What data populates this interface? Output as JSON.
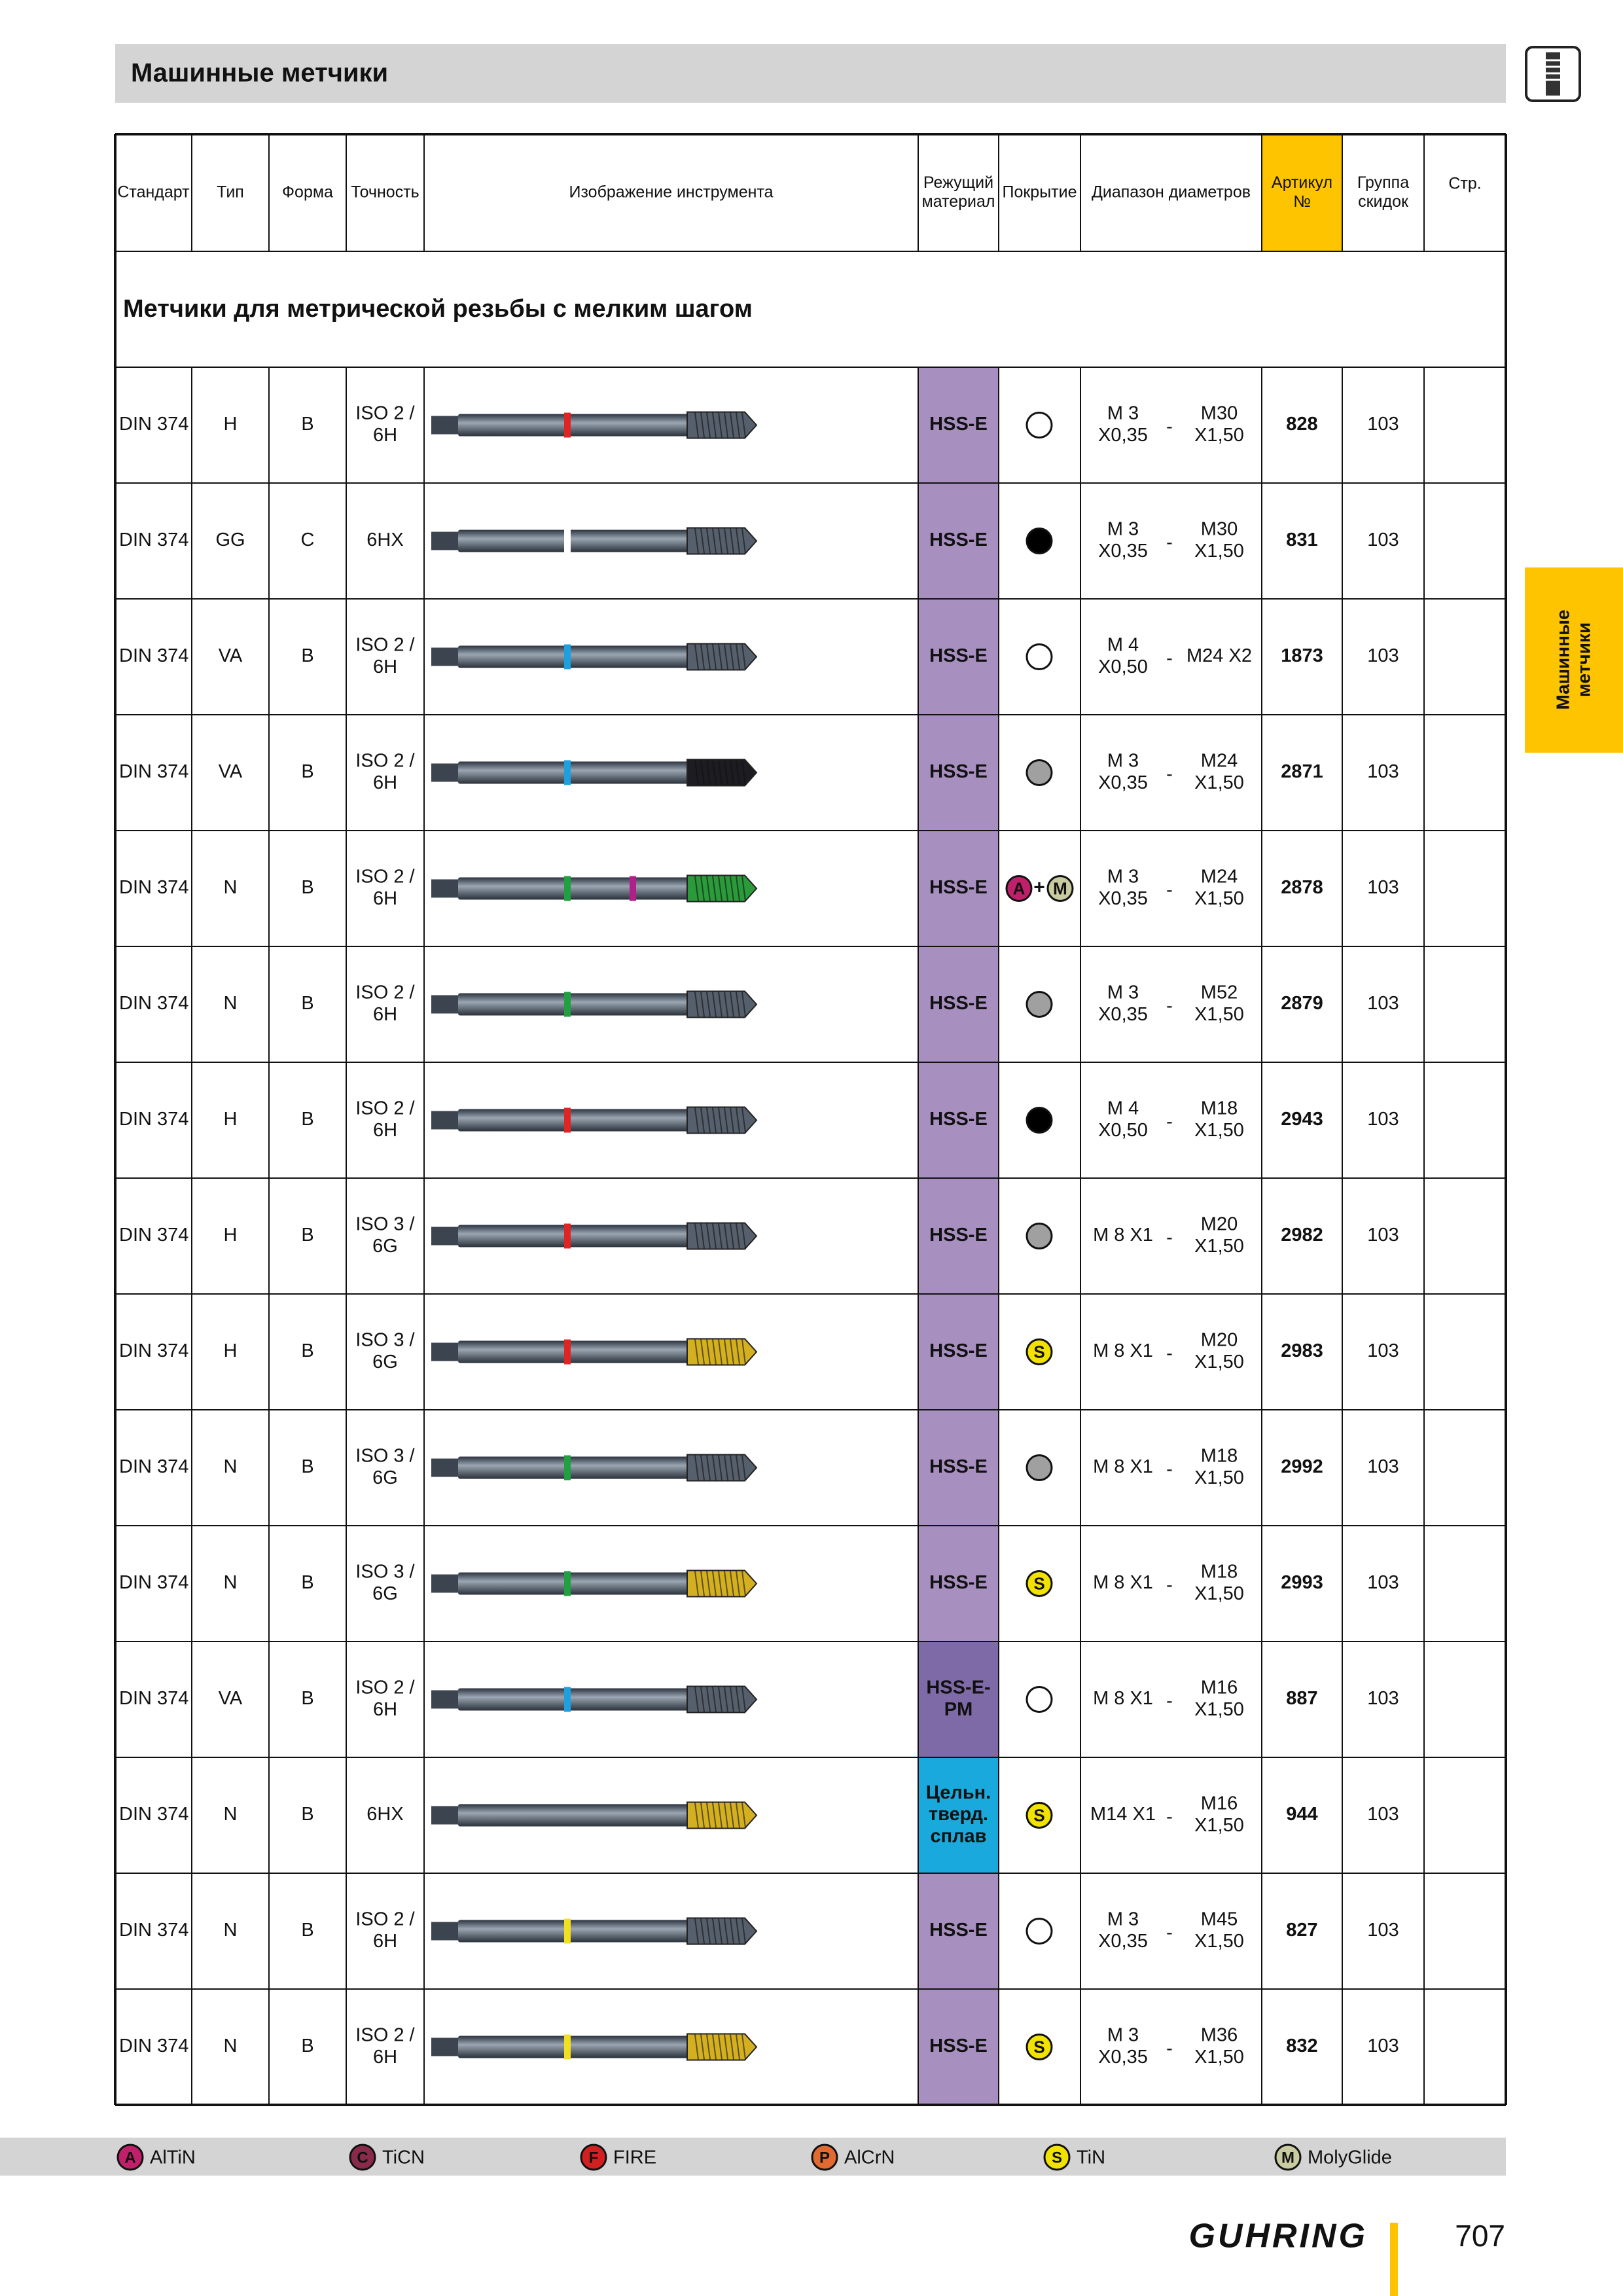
{
  "header": {
    "title": "Машинные метчики"
  },
  "table": {
    "columns": [
      [
        "Стандарт"
      ],
      [
        "Тип"
      ],
      [
        "Форма"
      ],
      [
        "Точность"
      ],
      [
        "Изображение инструмента"
      ],
      [
        "Режущий",
        "материал"
      ],
      [
        "Покрытие"
      ],
      [
        "Диапазон диаметров"
      ],
      [
        "Артикул",
        "№"
      ],
      [
        "Группа",
        "скидок"
      ],
      [
        "Стр."
      ]
    ],
    "section_title": "Метчики для метрической резьбы с мелким шагом",
    "range_sep": "-",
    "rows": [
      {
        "standard": "DIN 374",
        "type": "H",
        "form": "B",
        "accuracy": [
          "ISO 2 /",
          "6H"
        ],
        "tool": {
          "band": "#e02424",
          "tip": "#56606c"
        },
        "material": [
          "HSS-E"
        ],
        "material_color": "#a78fc0",
        "coating": [
          {
            "color": "#ffffff"
          }
        ],
        "range_from": [
          "M 3",
          "X0,35"
        ],
        "range_to": [
          "M30",
          "X1,50"
        ],
        "article": "828",
        "group": "103"
      },
      {
        "standard": "DIN 374",
        "type": "GG",
        "form": "C",
        "accuracy": [
          "6HX"
        ],
        "tool": {
          "band": "#ffffff",
          "tip": "#56606c"
        },
        "material": [
          "HSS-E"
        ],
        "material_color": "#a78fc0",
        "coating": [
          {
            "color": "#000000"
          }
        ],
        "range_from": [
          "M 3",
          "X0,35"
        ],
        "range_to": [
          "M30",
          "X1,50"
        ],
        "article": "831",
        "group": "103"
      },
      {
        "standard": "DIN 374",
        "type": "VA",
        "form": "B",
        "accuracy": [
          "ISO 2 /",
          "6H"
        ],
        "tool": {
          "band": "#1ea0e0",
          "tip": "#56606c"
        },
        "material": [
          "HSS-E"
        ],
        "material_color": "#a78fc0",
        "coating": [
          {
            "color": "#ffffff"
          }
        ],
        "range_from": [
          "M 4",
          "X0,50"
        ],
        "range_to": [
          "M24 X2"
        ],
        "article": "1873",
        "group": "103"
      },
      {
        "standard": "DIN 374",
        "type": "VA",
        "form": "B",
        "accuracy": [
          "ISO 2 /",
          "6H"
        ],
        "tool": {
          "band": "#1ea0e0",
          "tip": "#1c1c22"
        },
        "material": [
          "HSS-E"
        ],
        "material_color": "#a78fc0",
        "coating": [
          {
            "color": "#a0a0a0"
          }
        ],
        "range_from": [
          "M 3",
          "X0,35"
        ],
        "range_to": [
          "M24",
          "X1,50"
        ],
        "article": "2871",
        "group": "103"
      },
      {
        "standard": "DIN 374",
        "type": "N",
        "form": "B",
        "accuracy": [
          "ISO 2 /",
          "6H"
        ],
        "tool": {
          "band": "#20a040",
          "band2": "#b0208a",
          "tip": "#2a9a3a"
        },
        "material": [
          "HSS-E"
        ],
        "material_color": "#a78fc0",
        "coating": [
          {
            "label": "A",
            "color": "#c0206a"
          },
          {
            "label": "M",
            "color": "#c8cca0"
          }
        ],
        "coating_join": "+",
        "range_from": [
          "M 3",
          "X0,35"
        ],
        "range_to": [
          "M24",
          "X1,50"
        ],
        "article": "2878",
        "group": "103"
      },
      {
        "standard": "DIN 374",
        "type": "N",
        "form": "B",
        "accuracy": [
          "ISO 2 /",
          "6H"
        ],
        "tool": {
          "band": "#20a040",
          "tip": "#56606c"
        },
        "material": [
          "HSS-E"
        ],
        "material_color": "#a78fc0",
        "coating": [
          {
            "color": "#a0a0a0"
          }
        ],
        "range_from": [
          "M 3",
          "X0,35"
        ],
        "range_to": [
          "M52",
          "X1,50"
        ],
        "article": "2879",
        "group": "103"
      },
      {
        "standard": "DIN 374",
        "type": "H",
        "form": "B",
        "accuracy": [
          "ISO 2 /",
          "6H"
        ],
        "tool": {
          "band": "#e02424",
          "tip": "#56606c"
        },
        "material": [
          "HSS-E"
        ],
        "material_color": "#a78fc0",
        "coating": [
          {
            "color": "#000000"
          }
        ],
        "range_from": [
          "M 4",
          "X0,50"
        ],
        "range_to": [
          "M18",
          "X1,50"
        ],
        "article": "2943",
        "group": "103"
      },
      {
        "standard": "DIN 374",
        "type": "H",
        "form": "B",
        "accuracy": [
          "ISO 3 /",
          "6G"
        ],
        "tool": {
          "band": "#e02424",
          "tip": "#56606c"
        },
        "material": [
          "HSS-E"
        ],
        "material_color": "#a78fc0",
        "coating": [
          {
            "color": "#a0a0a0"
          }
        ],
        "range_from": [
          "M 8 X1"
        ],
        "range_to": [
          "M20",
          "X1,50"
        ],
        "article": "2982",
        "group": "103"
      },
      {
        "standard": "DIN 374",
        "type": "H",
        "form": "B",
        "accuracy": [
          "ISO 3 /",
          "6G"
        ],
        "tool": {
          "band": "#e02424",
          "tip": "#d4b020"
        },
        "material": [
          "HSS-E"
        ],
        "material_color": "#a78fc0",
        "coating": [
          {
            "label": "S",
            "color": "#f2e200"
          }
        ],
        "range_from": [
          "M 8 X1"
        ],
        "range_to": [
          "M20",
          "X1,50"
        ],
        "article": "2983",
        "group": "103"
      },
      {
        "standard": "DIN 374",
        "type": "N",
        "form": "B",
        "accuracy": [
          "ISO 3 /",
          "6G"
        ],
        "tool": {
          "band": "#20a040",
          "tip": "#56606c"
        },
        "material": [
          "HSS-E"
        ],
        "material_color": "#a78fc0",
        "coating": [
          {
            "color": "#a0a0a0"
          }
        ],
        "range_from": [
          "M 8 X1"
        ],
        "range_to": [
          "M18",
          "X1,50"
        ],
        "article": "2992",
        "group": "103"
      },
      {
        "standard": "DIN 374",
        "type": "N",
        "form": "B",
        "accuracy": [
          "ISO 3 /",
          "6G"
        ],
        "tool": {
          "band": "#20a040",
          "tip": "#d4b020"
        },
        "material": [
          "HSS-E"
        ],
        "material_color": "#a78fc0",
        "coating": [
          {
            "label": "S",
            "color": "#f2e200"
          }
        ],
        "range_from": [
          "M 8 X1"
        ],
        "range_to": [
          "M18",
          "X1,50"
        ],
        "article": "2993",
        "group": "103"
      },
      {
        "standard": "DIN 374",
        "type": "VA",
        "form": "B",
        "accuracy": [
          "ISO 2 /",
          "6H"
        ],
        "tool": {
          "band": "#1ea0e0",
          "tip": "#56606c"
        },
        "material": [
          "HSS-E-",
          "PM"
        ],
        "material_color": "#7f6aa8",
        "coating": [
          {
            "color": "#ffffff"
          }
        ],
        "range_from": [
          "M 8 X1"
        ],
        "range_to": [
          "M16",
          "X1,50"
        ],
        "article": "887",
        "group": "103"
      },
      {
        "standard": "DIN 374",
        "type": "N",
        "form": "B",
        "accuracy": [
          "6HX"
        ],
        "tool": {
          "tip": "#d4b020"
        },
        "material": [
          "Цельн.",
          "тверд.",
          "сплав"
        ],
        "material_color": "#1aa9dc",
        "coating": [
          {
            "label": "S",
            "color": "#f2e200"
          }
        ],
        "range_from": [
          "M14 X1"
        ],
        "range_to": [
          "M16",
          "X1,50"
        ],
        "article": "944",
        "group": "103"
      },
      {
        "standard": "DIN 374",
        "type": "N",
        "form": "B",
        "accuracy": [
          "ISO 2 /",
          "6H"
        ],
        "tool": {
          "band": "#f0e020",
          "tip": "#56606c"
        },
        "material": [
          "HSS-E"
        ],
        "material_color": "#a78fc0",
        "coating": [
          {
            "color": "#ffffff"
          }
        ],
        "range_from": [
          "M 3",
          "X0,35"
        ],
        "range_to": [
          "M45",
          "X1,50"
        ],
        "article": "827",
        "group": "103"
      },
      {
        "standard": "DIN 374",
        "type": "N",
        "form": "B",
        "accuracy": [
          "ISO 2 /",
          "6H"
        ],
        "tool": {
          "band": "#f0e020",
          "tip": "#d4b020"
        },
        "material": [
          "HSS-E"
        ],
        "material_color": "#a78fc0",
        "coating": [
          {
            "label": "S",
            "color": "#f2e200"
          }
        ],
        "range_from": [
          "M 3",
          "X0,35"
        ],
        "range_to": [
          "M36",
          "X1,50"
        ],
        "article": "832",
        "group": "103"
      }
    ]
  },
  "legend": [
    {
      "icon": "A",
      "label": "AlTiN",
      "color": "#c0206a"
    },
    {
      "icon": "C",
      "label": "TiCN",
      "color": "#8a2a4a"
    },
    {
      "icon": "F",
      "label": "FIRE",
      "color": "#d02020"
    },
    {
      "icon": "P",
      "label": "AlCrN",
      "color": "#e06a30"
    },
    {
      "icon": "S",
      "label": "TiN",
      "color": "#f2e200"
    },
    {
      "icon": "M",
      "label": "MolyGlide",
      "color": "#c8cca0"
    }
  ],
  "side_tab": [
    "Машинные",
    "метчики"
  ],
  "footer": {
    "logo": "GUHRING",
    "page": "707"
  }
}
